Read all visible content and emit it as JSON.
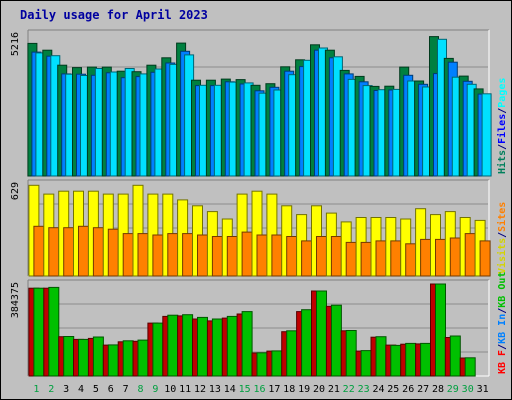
{
  "chart_data": {
    "type": "bar",
    "title": "Daily usage for April 2023",
    "categories": [
      "1",
      "2",
      "3",
      "4",
      "5",
      "6",
      "7",
      "8",
      "9",
      "10",
      "11",
      "12",
      "13",
      "14",
      "15",
      "16",
      "17",
      "18",
      "19",
      "20",
      "21",
      "22",
      "23",
      "24",
      "25",
      "26",
      "27",
      "28",
      "29",
      "30",
      "31"
    ],
    "weekend_days": [
      "1",
      "2",
      "8",
      "9",
      "15",
      "16",
      "22",
      "23",
      "29",
      "30"
    ],
    "panels": [
      {
        "name": "hits-files-pages",
        "max_label": "5216",
        "ymax": 5216,
        "legend": [
          {
            "text": "Hits",
            "color": "#00805c"
          },
          {
            "text": "/",
            "color": "#000080"
          },
          {
            "text": "Files",
            "color": "#0000ff"
          },
          {
            "text": "/",
            "color": "#000080"
          },
          {
            "text": "Pages",
            "color": "#00ffff"
          }
        ],
        "series": [
          {
            "name": "Hits",
            "color": "#008040",
            "values": [
              4870,
              4620,
              4070,
              3980,
              4000,
              4000,
              3850,
              3830,
              4070,
              4340,
              4880,
              3520,
              3520,
              3560,
              3540,
              3330,
              3390,
              4010,
              4270,
              4820,
              4620,
              3880,
              3660,
              3290,
              3300,
              4000,
              3490,
              5120,
              4320,
              3670,
              3200
            ]
          },
          {
            "name": "Files",
            "color": "#0080ff",
            "values": [
              4550,
              4400,
              3750,
              3740,
              3700,
              3790,
              3610,
              3650,
              3810,
              4150,
              4580,
              3320,
              3320,
              3460,
              3380,
              3130,
              3260,
              3850,
              4020,
              4620,
              4340,
              3750,
              3460,
              3140,
              3160,
              3700,
              3370,
              3760,
              4180,
              3480,
              3010
            ]
          },
          {
            "name": "Pages",
            "color": "#00e0ff",
            "values": [
              4520,
              4420,
              3740,
              3690,
              3950,
              3820,
              3950,
              3750,
              3930,
              4100,
              4450,
              3330,
              3330,
              3450,
              3420,
              3040,
              3160,
              3720,
              4250,
              4700,
              4380,
              3550,
              3320,
              3170,
              3180,
              3490,
              3270,
              5020,
              3630,
              3370,
              3020
            ]
          }
        ]
      },
      {
        "name": "visits-sites",
        "max_label": "629",
        "ymax": 629,
        "legend": [
          {
            "text": "Visits",
            "color": "#d4d400"
          },
          {
            "text": "/",
            "color": "#000080"
          },
          {
            "text": "Sites",
            "color": "#ff8000"
          }
        ],
        "series": [
          {
            "name": "Visits",
            "color": "#ffff00",
            "values": [
              620,
              560,
              580,
              580,
              580,
              560,
              560,
              620,
              560,
              560,
              520,
              480,
              440,
              390,
              560,
              580,
              560,
              480,
              420,
              480,
              430,
              370,
              400,
              400,
              400,
              390,
              460,
              420,
              440,
              400,
              380
            ]
          },
          {
            "name": "Sites",
            "color": "#ff8000",
            "values": [
              340,
              330,
              330,
              340,
              330,
              320,
              290,
              290,
              280,
              290,
              290,
              280,
              270,
              270,
              300,
              280,
              280,
              270,
              240,
              270,
              270,
              230,
              230,
              240,
              240,
              220,
              250,
              250,
              260,
              290,
              240
            ]
          }
        ]
      },
      {
        "name": "kbytes",
        "max_label": "384375",
        "ymax": 384375,
        "legend": [
          {
            "text": "KB F",
            "color": "#ff0000"
          },
          {
            "text": "/",
            "color": "#000080"
          },
          {
            "text": "KB In",
            "color": "#0080ff"
          },
          {
            "text": "/",
            "color": "#000080"
          },
          {
            "text": "KB Out",
            "color": "#00c000"
          }
        ],
        "series": [
          {
            "name": "KB F",
            "color": "#c00000",
            "values": [
              367000,
              367000,
              164000,
              153000,
              157000,
              129000,
              143000,
              145000,
              221000,
              249000,
              251000,
              238000,
              230000,
              242000,
              259000,
              96000,
              104000,
              185000,
              269000,
              355000,
              291000,
              189000,
              104000,
              162000,
              129000,
              133000,
              134000,
              384375,
              161000,
              75000,
              0
            ]
          },
          {
            "name": "KB Out",
            "color": "#00c000",
            "values": [
              367000,
              370000,
              165000,
              153000,
              163000,
              130000,
              147000,
              150000,
              221000,
              254000,
              256000,
              245000,
              238000,
              249000,
              269000,
              97000,
              105000,
              189000,
              277000,
              355000,
              296000,
              190000,
              106000,
              164000,
              128000,
              136000,
              136000,
              384375,
              167000,
              76000,
              0
            ]
          }
        ]
      }
    ]
  }
}
